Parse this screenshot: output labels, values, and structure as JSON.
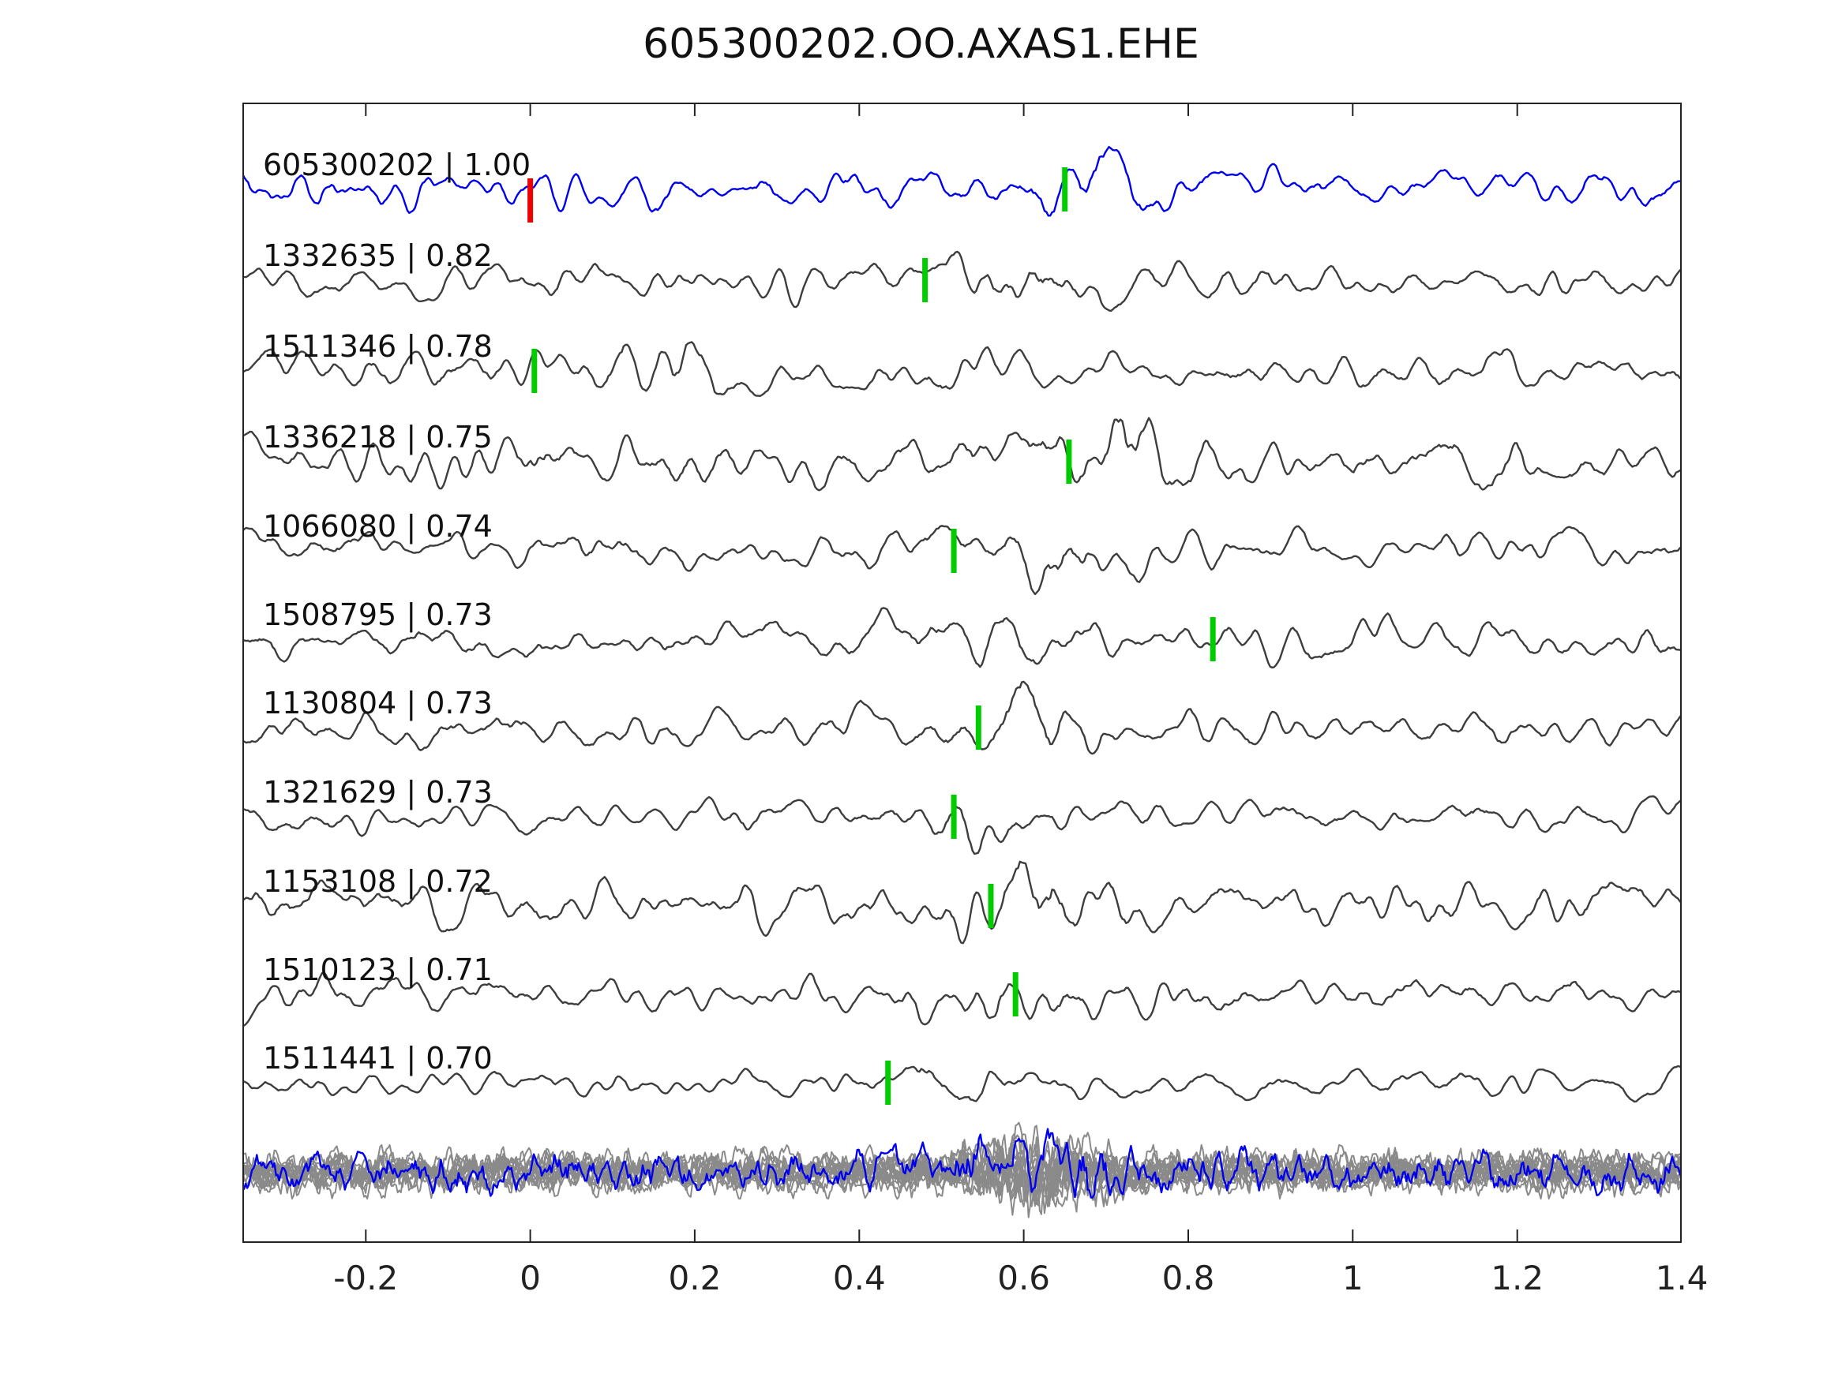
{
  "chart_data": {
    "type": "line",
    "title": "605300202.OO.AXAS1.EHE",
    "xlabel": "",
    "ylabel": "",
    "xlim": [
      -0.35,
      1.4
    ],
    "x_ticks": [
      -0.2,
      0,
      0.2,
      0.4,
      0.6,
      0.8,
      1,
      1.2,
      1.4
    ],
    "x_tick_labels": [
      "-0.2",
      "0",
      "0.2",
      "0.4",
      "0.6",
      "0.8",
      "1",
      "1.2",
      "1.4"
    ],
    "grid": false,
    "legend": "none",
    "colors": {
      "template_trace": "#0000ee",
      "detection_trace": "#3d3d3d",
      "stack_trace": "#8a8a8a",
      "stack_highlight": "#0000ee",
      "pick_marker": "#00cc00",
      "template_marker": "#ee0000",
      "axis": "#222222"
    },
    "traces": [
      {
        "label": "605300202 | 1.00",
        "id": "605300202",
        "ccc": 1.0,
        "pick_time": 0.65,
        "template_time": 0.0,
        "color": "#0000ee",
        "burst": 0.68
      },
      {
        "label": "1332635 | 0.82",
        "id": "1332635",
        "ccc": 0.82,
        "pick_time": 0.48,
        "color": "#3d3d3d",
        "burst": 0.62
      },
      {
        "label": "1511346 | 0.78",
        "id": "1511346",
        "ccc": 0.78,
        "pick_time": 0.005,
        "color": "#3d3d3d",
        "burst": 0.16
      },
      {
        "label": "1336218 | 0.75",
        "id": "1336218",
        "ccc": 0.75,
        "pick_time": 0.655,
        "color": "#3d3d3d",
        "burst": 0.72
      },
      {
        "label": "1066080 | 0.74",
        "id": "1066080",
        "ccc": 0.74,
        "pick_time": 0.515,
        "color": "#3d3d3d",
        "burst": 0.62
      },
      {
        "label": "1508795 | 0.73",
        "id": "1508795",
        "ccc": 0.73,
        "pick_time": 0.83,
        "color": "#3d3d3d",
        "burst": 0.55
      },
      {
        "label": "1130804 | 0.73",
        "id": "1130804",
        "ccc": 0.73,
        "pick_time": 0.545,
        "color": "#3d3d3d",
        "burst": 0.6
      },
      {
        "label": "1321629 | 0.73",
        "id": "1321629",
        "ccc": 0.73,
        "pick_time": 0.515,
        "color": "#3d3d3d",
        "burst": 0.545
      },
      {
        "label": "1153108 | 0.72",
        "id": "1153108",
        "ccc": 0.72,
        "pick_time": 0.56,
        "color": "#3d3d3d",
        "burst": 0.62
      },
      {
        "label": "1510123 | 0.71",
        "id": "1510123",
        "ccc": 0.71,
        "pick_time": 0.59,
        "color": "#3d3d3d",
        "burst": 0.56
      },
      {
        "label": "1511441 | 0.70",
        "id": "1511441",
        "ccc": 0.7,
        "pick_time": 0.435,
        "color": "#3d3d3d",
        "burst": 0.5
      }
    ],
    "stack": {
      "n_traces": 14,
      "has_highlight_trace": true,
      "burst_center": 0.62
    }
  }
}
